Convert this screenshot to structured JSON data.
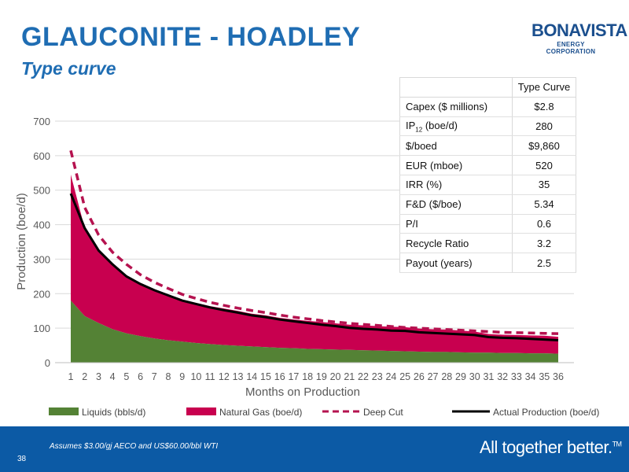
{
  "header": {
    "title": "GLAUCONITE - HOADLEY",
    "subtitle": "Type curve"
  },
  "logo": {
    "name": "BONAVISTA",
    "tagline": "ENERGY CORPORATION"
  },
  "table": {
    "header": "Type Curve",
    "rows": [
      {
        "label": "Capex ($ millions)",
        "value": "$2.8"
      },
      {
        "label": "IP",
        "label_sub": "12",
        "label_suffix": " (boe/d)",
        "value": "280"
      },
      {
        "label": "$/boed",
        "value": "$9,860"
      },
      {
        "label": "EUR (mboe)",
        "value": "520"
      },
      {
        "label": "IRR (%)",
        "value": "35"
      },
      {
        "label": "F&D ($/boe)",
        "value": "5.34"
      },
      {
        "label": "P/I",
        "value": "0.6"
      },
      {
        "label": "Recycle Ratio",
        "value": "3.2"
      },
      {
        "label": "Payout (years)",
        "value": "2.5"
      }
    ]
  },
  "chart_data": {
    "type": "area",
    "xlabel": "Months on Production",
    "ylabel": "Production (boe/d)",
    "ylim": [
      0,
      700
    ],
    "yticks": [
      0,
      100,
      200,
      300,
      400,
      500,
      600,
      700
    ],
    "grid": true,
    "legend_position": "bottom",
    "x": [
      1,
      2,
      3,
      4,
      5,
      6,
      7,
      8,
      9,
      10,
      11,
      12,
      13,
      14,
      15,
      16,
      17,
      18,
      19,
      20,
      21,
      22,
      23,
      24,
      25,
      26,
      27,
      28,
      29,
      30,
      31,
      32,
      33,
      34,
      35,
      36
    ],
    "series": [
      {
        "name": "Liquids (bbls/d)",
        "style": "stacked-area",
        "color": "#548235",
        "values": [
          180,
          135,
          115,
          97,
          85,
          77,
          70,
          65,
          61,
          57,
          54,
          51,
          49,
          47,
          45,
          43,
          42,
          40,
          39,
          38,
          37,
          36,
          35,
          34,
          33,
          32,
          31,
          31,
          30,
          29,
          29,
          28,
          28,
          27,
          27,
          26
        ]
      },
      {
        "name": "Natural Gas (boe/d)",
        "style": "stacked-area",
        "color": "#c8004f",
        "values": [
          365,
          255,
          212,
          187,
          165,
          150,
          140,
          130,
          121,
          116,
          110,
          106,
          101,
          95,
          92,
          87,
          83,
          81,
          79,
          76,
          73,
          72,
          71,
          70,
          70,
          67,
          66,
          65,
          63,
          61,
          54,
          53,
          52,
          52,
          51,
          49
        ]
      },
      {
        "name": "Deep Cut",
        "style": "dashed-line",
        "color": "#b5124f",
        "values": [
          615,
          450,
          370,
          320,
          285,
          255,
          233,
          215,
          198,
          186,
          175,
          166,
          158,
          151,
          145,
          138,
          132,
          127,
          122,
          118,
          114,
          111,
          108,
          105,
          102,
          100,
          98,
          96,
          94,
          92,
          90,
          88,
          87,
          86,
          85,
          84
        ]
      },
      {
        "name": "Actual Production (boe/d)",
        "style": "line",
        "color": "#000000",
        "values": [
          490,
          390,
          325,
          285,
          250,
          228,
          210,
          195,
          180,
          170,
          160,
          152,
          145,
          137,
          132,
          125,
          120,
          115,
          110,
          106,
          101,
          98,
          96,
          93,
          92,
          88,
          86,
          84,
          82,
          80,
          74,
          72,
          71,
          69,
          67,
          65
        ]
      }
    ]
  },
  "footer": {
    "note": "Assumes $3.00/gj AECO and US$60.00/bbl WTI",
    "page_number": "38",
    "tagline": "All together better.",
    "trademark": "TM"
  },
  "colors": {
    "title": "#1f6db3",
    "footer_bg": "#0c5aa5",
    "liquids": "#548235",
    "gas": "#c8004f",
    "deep_cut": "#b5124f",
    "actual": "#000000"
  }
}
